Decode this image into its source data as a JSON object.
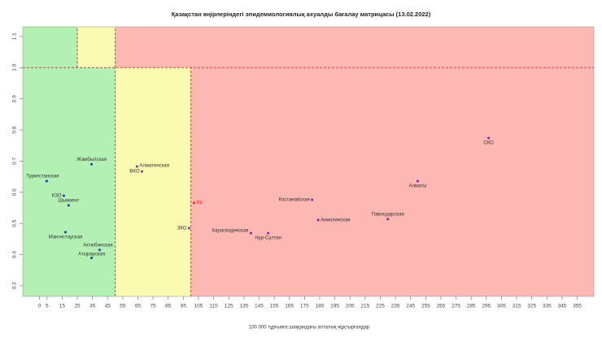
{
  "chart_data": {
    "type": "scatter",
    "title": "Қазақстан өңірлеріндегі эпидемиологиялық ахуалды бағалау матрицасы (13.02.2022)",
    "x_label": "100 000 тұрғынға шаққандағы апталық жұқтырғандар",
    "labels": [
      "Туркестанская",
      "Жамбылская",
      "КЗО",
      "Шымкент",
      "Мангистауская",
      "Актюбинская",
      "Атырауская",
      "Алматинская",
      "ВКО",
      "РК",
      "ЗКО",
      "Костанайская",
      "Акмолинская",
      "Карагандинская",
      "Нур-Султан",
      "Павлодарская",
      "Алматы",
      "СКО"
    ],
    "x": [
      4.8,
      34.4,
      16.1,
      19.3,
      17.2,
      39.7,
      34.4,
      64.4,
      67.7,
      102,
      98.8,
      180,
      184,
      139.6,
      151,
      230,
      249.7,
      296.5
    ],
    "values": [
      0.636,
      0.69,
      0.589,
      0.558,
      0.472,
      0.415,
      0.389,
      0.683,
      0.667,
      0.566,
      0.485,
      0.576,
      0.511,
      0.469,
      0.469,
      0.514,
      0.636,
      0.774
    ],
    "point_colors": [
      "#2233cc",
      "#2233cc",
      "#2233cc",
      "#2233cc",
      "#2233cc",
      "#2233cc",
      "#2233cc",
      "#8822aa",
      "#8822aa",
      "#ee2222",
      "#8822aa",
      "#8822aa",
      "#8822aa",
      "#8822aa",
      "#8822aa",
      "#8822aa",
      "#8822aa",
      "#8822aa"
    ],
    "label_color_rk": "#ee2222",
    "xlim": [
      -11,
      366
    ],
    "ylim": [
      0.266,
      1.131
    ],
    "xticks": [
      0,
      5,
      15,
      25,
      35,
      45,
      55,
      65,
      75,
      85,
      95,
      105,
      115,
      125,
      135,
      145,
      155,
      165,
      175,
      185,
      195,
      205,
      215,
      225,
      235,
      245,
      255,
      265,
      275,
      285,
      295,
      305,
      315,
      325,
      335,
      345,
      355
    ],
    "yticks": [
      0.3,
      0.4,
      0.5,
      0.6,
      0.7,
      0.8,
      0.9,
      {
        "value": 1,
        "label": "1.0"
      },
      1.1
    ],
    "zones": [
      {
        "x": [
          -11,
          25
        ],
        "y": [
          1,
          1.131
        ],
        "color": "#b3f0b3"
      },
      {
        "x": [
          25,
          50
        ],
        "y": [
          1,
          1.131
        ],
        "color": "#fafab0"
      },
      {
        "x": [
          50,
          366
        ],
        "y": [
          1,
          1.131
        ],
        "color": "#fdb8b3"
      },
      {
        "x": [
          -11,
          50
        ],
        "y": [
          0.266,
          1
        ],
        "color": "#b3f0b3"
      },
      {
        "x": [
          50,
          100
        ],
        "y": [
          0.266,
          1
        ],
        "color": "#fafab0"
      },
      {
        "x": [
          100,
          366
        ],
        "y": [
          0.266,
          1
        ],
        "color": "#fdb8b3"
      }
    ],
    "threshold_color": "#d04040"
  }
}
